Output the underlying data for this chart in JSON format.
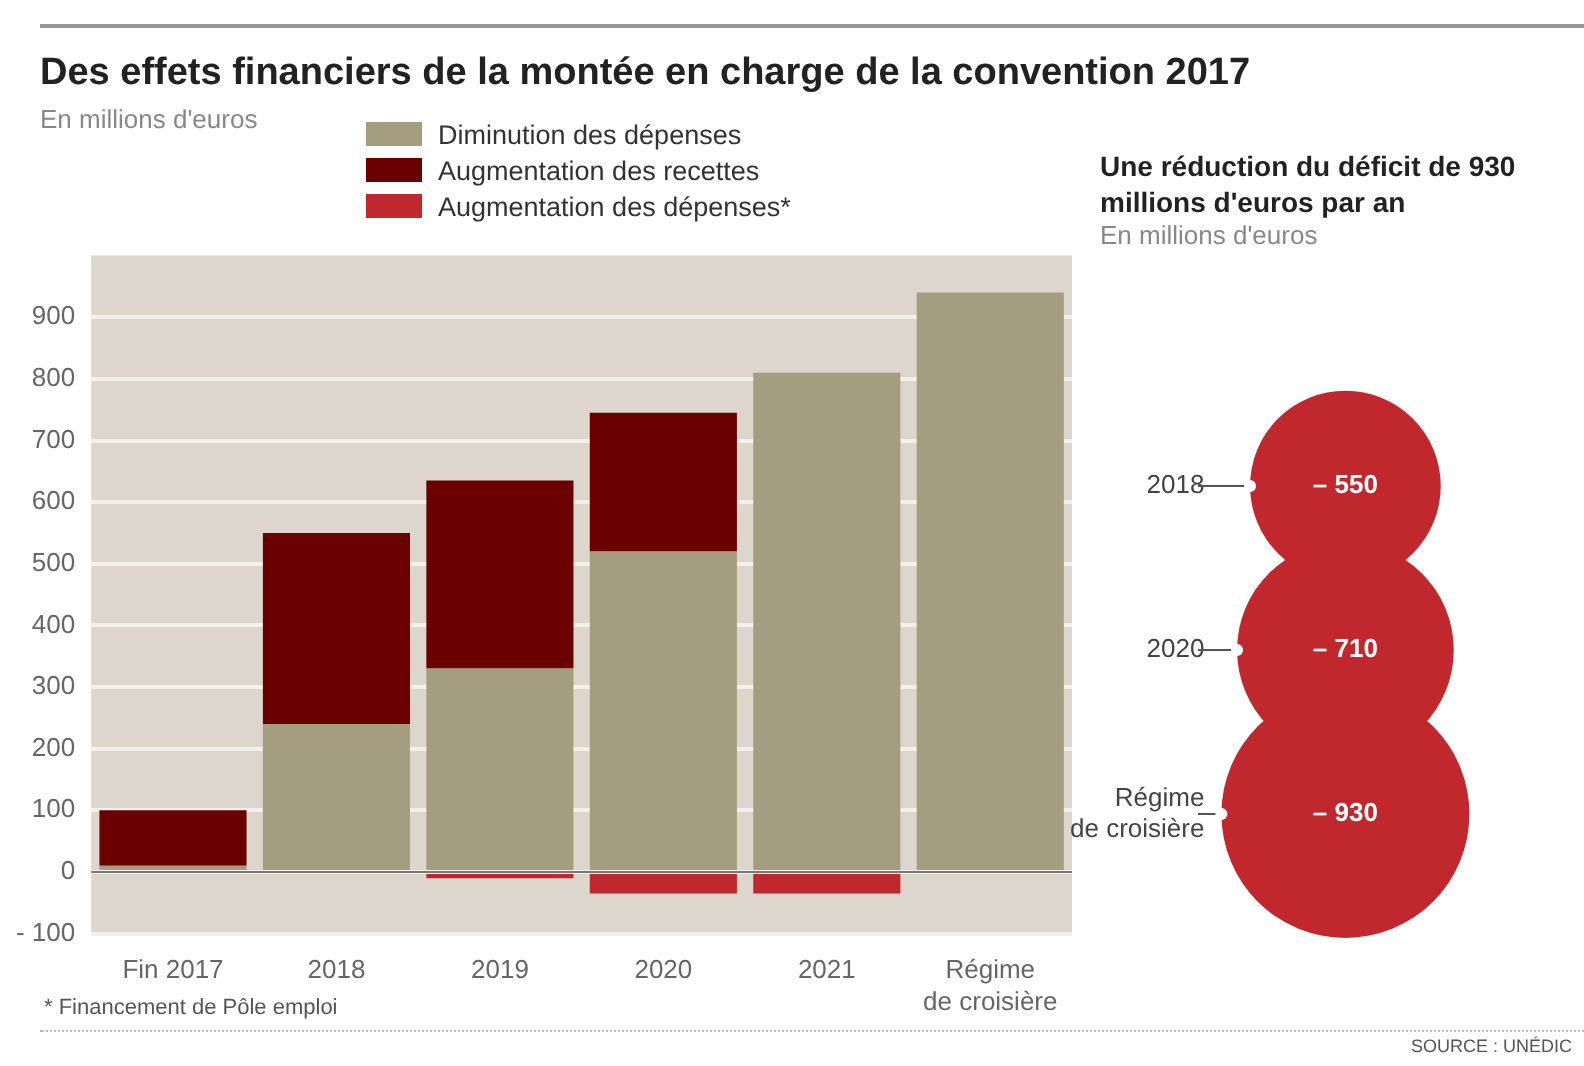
{
  "chart_data": [
    {
      "type": "bar",
      "title": "Des effets financiers de la montée en charge de la convention 2017",
      "subtitle": "En millions d'euros",
      "categories": [
        "Fin 2017",
        "2018",
        "2019",
        "2020",
        "2021",
        "Régime de croisière"
      ],
      "stacked": true,
      "series": [
        {
          "name": "Diminution des dépenses",
          "color": "#a59d80",
          "values": [
            10,
            240,
            330,
            520,
            810,
            940
          ]
        },
        {
          "name": "Augmentation des recettes",
          "color": "#6b0000",
          "values": [
            90,
            310,
            305,
            225,
            null,
            null
          ]
        },
        {
          "name": "Augmentation des dépenses*",
          "color": "#c0282d",
          "values": [
            null,
            null,
            -10,
            -35,
            -35,
            null
          ]
        }
      ],
      "ylim": [
        -100,
        1000
      ],
      "yticks": [
        {
          "value": -100,
          "label": "- 100"
        },
        0,
        100,
        200,
        300,
        400,
        500,
        600,
        700,
        800,
        900
      ],
      "grid": "y",
      "legend": "top left",
      "annotations": [
        "* Financement de Pôle emploi"
      ]
    },
    {
      "type": "other",
      "title": "Une réduction du déficit de 930 millions d'euros par an",
      "subtitle": "En millions d'euros",
      "categories": [
        "2018",
        "2020",
        "Régime de croisière"
      ],
      "values": [
        -550,
        -710,
        -930
      ],
      "value_labels": [
        "– 550",
        "– 710",
        "– 930"
      ],
      "color": "#c0282d",
      "annotations": [
        "SOURCE : UNÉDIC"
      ]
    }
  ]
}
